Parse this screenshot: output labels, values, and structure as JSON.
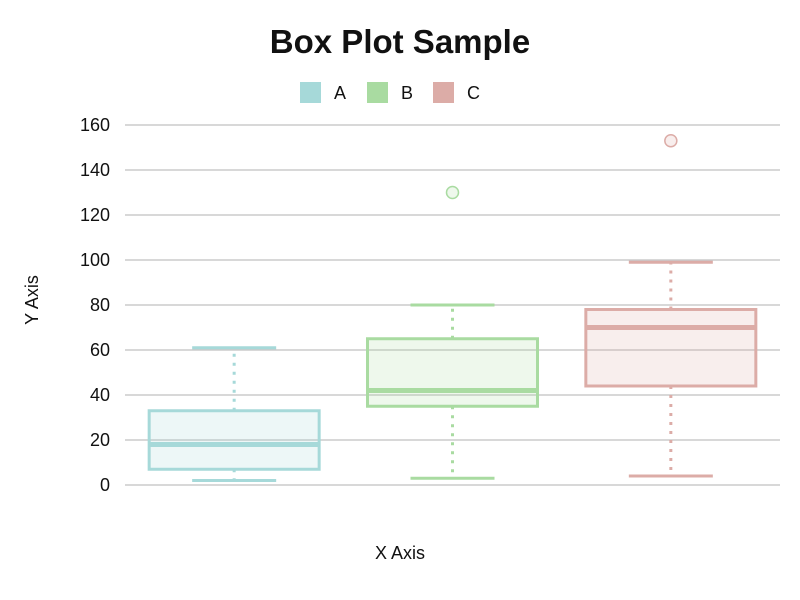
{
  "chart_data": {
    "type": "box",
    "title": "Box Plot Sample",
    "xlabel": "X Axis",
    "ylabel": "Y Axis",
    "ylim": [
      0,
      160
    ],
    "yticks": [
      0,
      20,
      40,
      60,
      80,
      100,
      120,
      140,
      160
    ],
    "grid": true,
    "legend_position": "top-center",
    "series": [
      {
        "name": "A",
        "color": "#a6d9d9",
        "whisker_low": 2,
        "q1": 7,
        "median": 18,
        "q3": 33,
        "whisker_high": 61,
        "outliers": []
      },
      {
        "name": "B",
        "color": "#a9dba1",
        "whisker_low": 3,
        "q1": 35,
        "median": 42,
        "q3": 65,
        "whisker_high": 80,
        "outliers": [
          130
        ]
      },
      {
        "name": "C",
        "color": "#dcaca7",
        "whisker_low": 4,
        "q1": 44,
        "median": 70,
        "q3": 78,
        "whisker_high": 99,
        "outliers": [
          153
        ]
      }
    ]
  }
}
